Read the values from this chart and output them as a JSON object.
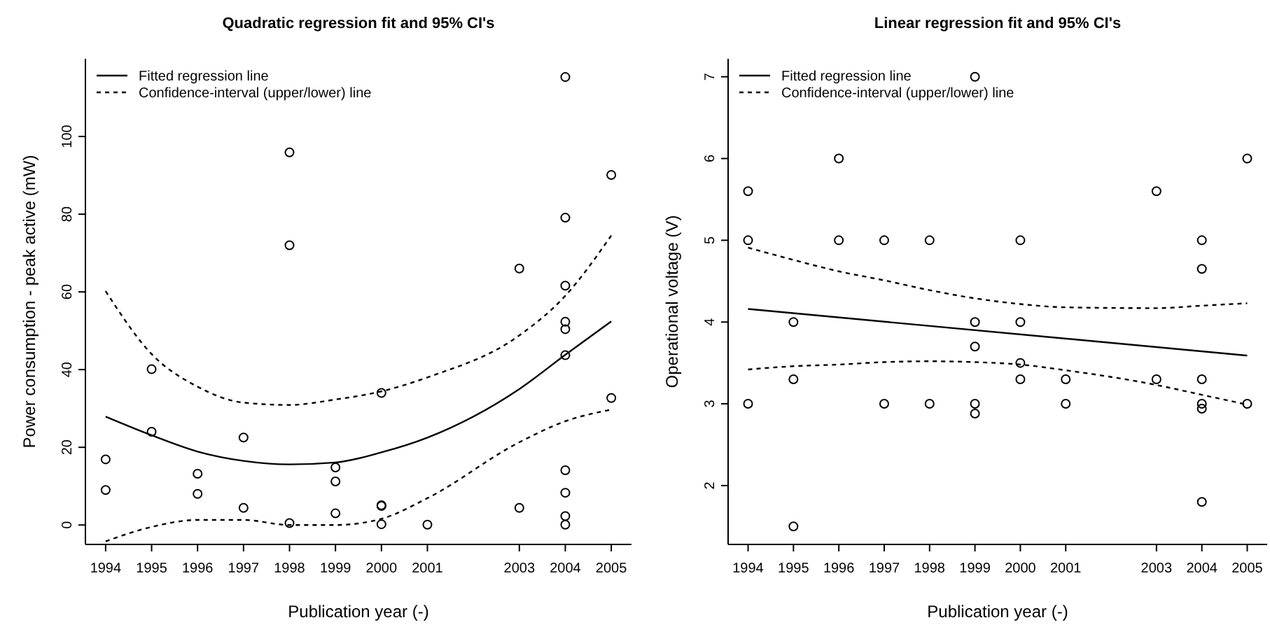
{
  "chart_data": [
    {
      "type": "scatter",
      "title": "Quadratic regression fit and 95% CI's",
      "xlabel": "Publication year (-)",
      "ylabel": "Power consumption - peak active (mW)",
      "xlim": [
        1993.56,
        2005.44
      ],
      "ylim": [
        -5,
        120
      ],
      "xticks": [
        1994,
        1995,
        1996,
        1997,
        1998,
        1999,
        2000,
        2001,
        2003,
        2004,
        2005
      ],
      "yticks": [
        0,
        20,
        40,
        60,
        80,
        100
      ],
      "legend": "top left",
      "grid": false,
      "series": [
        {
          "color": "#000000",
          "marker": "circle",
          "x": [
            1994,
            1994,
            1995,
            1995,
            1996,
            1996,
            1997,
            1997,
            1998,
            1998,
            1998,
            1999,
            1999,
            1999,
            2000,
            2000,
            2000,
            2000,
            2001,
            2003,
            2003,
            2004,
            2004,
            2004,
            2004,
            2004,
            2004,
            2004,
            2004,
            2004,
            2004,
            2005,
            2005
          ],
          "values": [
            16.9,
            9,
            40.1,
            24,
            13.2,
            8,
            22.5,
            4.4,
            95.9,
            72,
            0.5,
            14.8,
            11.2,
            3,
            34,
            5.1,
            4.9,
            0.2,
            0.1,
            66,
            4.4,
            115.3,
            79.1,
            61.6,
            52.3,
            50.4,
            43.7,
            14.1,
            8.3,
            2.3,
            0.1,
            90.1,
            32.7
          ]
        },
        {
          "type": "line",
          "name": "Fitted regression line",
          "color": "#000000",
          "line_style": "solid",
          "x": [
            1994,
            1995,
            1996,
            1997,
            1998,
            1999,
            2000,
            2001,
            2003,
            2004,
            2005
          ],
          "values": [
            27.9,
            23.1,
            18.9,
            16.5,
            15.6,
            16.1,
            18.7,
            22.5,
            35,
            43.8,
            52.4
          ]
        },
        {
          "type": "line",
          "name": "Confidence-interval (upper/lower) line",
          "color": "#000000",
          "line_style": "dashed",
          "x": [
            1994,
            1995,
            1996,
            1997,
            1998,
            1999,
            2000,
            2001,
            2003,
            2004,
            2005
          ],
          "values": [
            60.2,
            44,
            35.6,
            31.5,
            30.9,
            32.3,
            34.4,
            38,
            48.8,
            59,
            74.5
          ]
        },
        {
          "type": "line",
          "color": "#000000",
          "line_style": "dashed",
          "x": [
            1994,
            1995,
            1996,
            1997,
            1998,
            1999,
            2000,
            2001,
            2003,
            2004,
            2005
          ],
          "values": [
            -4.2,
            -0.5,
            1.3,
            1.3,
            0,
            0,
            1.6,
            6.9,
            21.3,
            26.7,
            29.7
          ]
        }
      ]
    },
    {
      "type": "scatter",
      "title": "Linear regression fit and 95% CI's",
      "xlabel": "Publication year (-)",
      "ylabel": "Operational voltage (V)",
      "xlim": [
        1993.56,
        2005.44
      ],
      "ylim": [
        1.28,
        7.22
      ],
      "xticks": [
        1994,
        1995,
        1996,
        1997,
        1998,
        1999,
        2000,
        2001,
        2003,
        2004,
        2005
      ],
      "yticks": [
        2,
        3,
        4,
        5,
        6,
        7
      ],
      "legend": "top left",
      "grid": false,
      "series": [
        {
          "color": "#000000",
          "marker": "circle",
          "x": [
            1994,
            1994,
            1994,
            1995,
            1995,
            1995,
            1996,
            1996,
            1997,
            1997,
            1998,
            1998,
            1999,
            1999,
            1999,
            1999,
            1999,
            2000,
            2000,
            2000,
            2000,
            2001,
            2001,
            2003,
            2003,
            2004,
            2004,
            2004,
            2004,
            2004,
            2004,
            2005,
            2005
          ],
          "values": [
            5.6,
            5,
            3,
            4,
            3.3,
            1.5,
            6,
            5,
            5,
            3,
            5,
            3,
            7,
            4,
            3.7,
            3,
            2.88,
            5,
            4,
            3.5,
            3.3,
            3.3,
            3,
            5.6,
            3.3,
            5,
            4.65,
            3.3,
            3,
            2.94,
            1.8,
            6,
            3
          ]
        },
        {
          "type": "line",
          "name": "Fitted regression line",
          "color": "#000000",
          "line_style": "solid",
          "x": [
            1994,
            2005
          ],
          "values": [
            4.16,
            3.59
          ]
        },
        {
          "type": "line",
          "name": "Confidence-interval (upper/lower) line",
          "color": "#000000",
          "line_style": "dashed",
          "x": [
            1994,
            1995,
            1996,
            1997,
            1998,
            1999,
            2000,
            2001,
            2003,
            2004,
            2005
          ],
          "values": [
            4.91,
            4.76,
            4.62,
            4.51,
            4.39,
            4.29,
            4.22,
            4.18,
            4.17,
            4.2,
            4.23
          ]
        },
        {
          "type": "line",
          "color": "#000000",
          "line_style": "dashed",
          "x": [
            1994,
            1995,
            1996,
            1997,
            1998,
            1999,
            2000,
            2001,
            2003,
            2004,
            2005
          ],
          "values": [
            3.42,
            3.46,
            3.48,
            3.51,
            3.52,
            3.51,
            3.48,
            3.41,
            3.23,
            3.11,
            2.99
          ]
        }
      ]
    }
  ]
}
